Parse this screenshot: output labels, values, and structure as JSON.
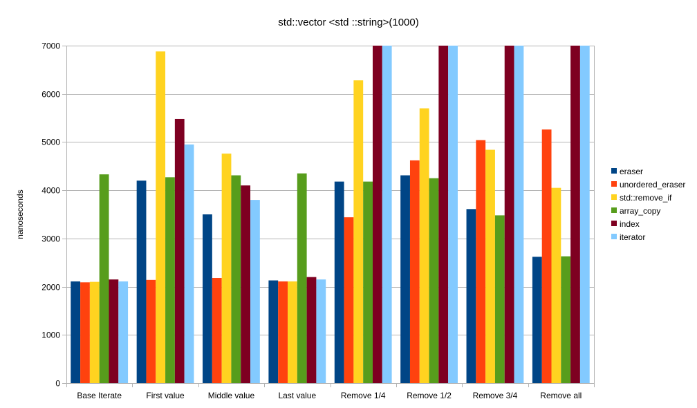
{
  "chart_data": {
    "type": "bar",
    "title": "std::vector <std ::string>(1000)",
    "xlabel": "",
    "ylabel": "nanoseconds",
    "ylim": [
      0,
      7000
    ],
    "yticks": [
      0,
      1000,
      2000,
      3000,
      4000,
      5000,
      6000,
      7000
    ],
    "grid": true,
    "legend": "right",
    "categories": [
      "Base Iterate",
      "First value",
      "Middle value",
      "Last value",
      "Remove 1/4",
      "Remove 1/2",
      "Remove 3/4",
      "Remove all"
    ],
    "series": [
      {
        "name": "eraser",
        "color": "#004586",
        "values": [
          2110,
          4200,
          3500,
          2130,
          4180,
          4310,
          3610,
          2620
        ]
      },
      {
        "name": "unordered_eraser",
        "color": "#ff420e",
        "values": [
          2090,
          2140,
          2180,
          2110,
          3440,
          4620,
          5040,
          5260
        ]
      },
      {
        "name": "std::remove_if",
        "color": "#ffd320",
        "values": [
          2100,
          6880,
          4760,
          2110,
          6280,
          5700,
          4840,
          4050
        ]
      },
      {
        "name": "array_copy",
        "color": "#579d1c",
        "values": [
          4330,
          4270,
          4310,
          4350,
          4180,
          4250,
          3480,
          2630
        ]
      },
      {
        "name": "index",
        "color": "#7e0021",
        "values": [
          2150,
          5480,
          4100,
          2200,
          7000,
          7000,
          7000,
          7000
        ]
      },
      {
        "name": "iterator",
        "color": "#83caff",
        "values": [
          2110,
          4950,
          3800,
          2150,
          7000,
          7000,
          7000,
          7000
        ]
      }
    ]
  }
}
